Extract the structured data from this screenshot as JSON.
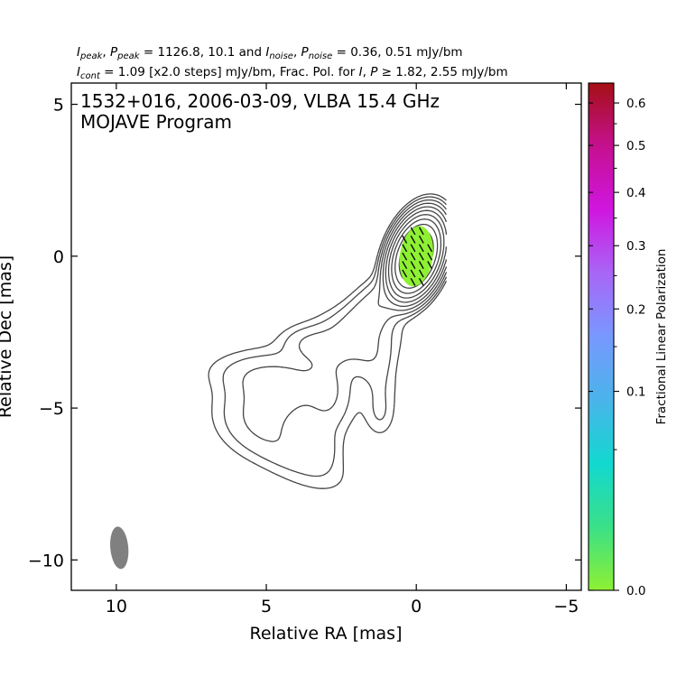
{
  "chart_data": {
    "type": "contour",
    "header": {
      "line1": {
        "ipeak_label": "I",
        "ipeak_sub": "peak",
        "ppeak_label": "P",
        "ppeak_sub": "peak",
        "peak_values": "= 1126.8, 10.1 and",
        "inoise_label": "I",
        "inoise_sub": "noise",
        "pnoise_label": "P",
        "pnoise_sub": "noise",
        "noise_values": "= 0.36, 0.51 mJy/bm"
      },
      "line2": {
        "icont_label": "I",
        "icont_sub": "cont",
        "cont_text": "= 1.09 [x2.0 steps] mJy/bm, Frac. Pol. for",
        "i_label": "I",
        "p_label": "P",
        "geq": "≥",
        "cutoff_values": "1.82, 2.55 mJy/bm"
      }
    },
    "title": "1532+016, 2006-03-09, VLBA 15.4 GHz",
    "subtitle": "MOJAVE Program",
    "xlabel": "Relative RA [mas]",
    "ylabel": "Relative Dec [mas]",
    "xlim": [
      11.5,
      -5.5
    ],
    "ylim": [
      -11,
      5.7
    ],
    "x_ticks": [
      10,
      5,
      0,
      -5
    ],
    "x_tick_labels": [
      "10",
      "5",
      "0",
      "−5"
    ],
    "y_ticks": [
      5,
      0,
      -5,
      -10
    ],
    "y_tick_labels": [
      "5",
      "0",
      "−5",
      "−10"
    ],
    "contour_color": "#444444",
    "core": {
      "x": 0.0,
      "y": 0.0
    },
    "contour_levels_mJy": [
      1.09,
      2.18,
      4.36,
      8.72,
      17.44,
      34.88,
      69.76,
      139.52,
      279.04,
      558.08
    ],
    "polarization": {
      "region_center": [
        0.0,
        0.0
      ],
      "region_extent_x": 0.55,
      "region_extent_y": 1.0,
      "fractional_pol_at_peak": 0.009,
      "color": "#8ef032",
      "evpa_deg": 60,
      "vector_color": "#000000"
    },
    "beam": {
      "x": 9.9,
      "y": -9.6,
      "major_mas": 1.4,
      "minor_mas": 0.6,
      "pa_deg": -5,
      "color": "#808080"
    },
    "colorbar": {
      "label": "Fractional Linear Polarization",
      "scale": "sqrt",
      "range": [
        0.0,
        0.65
      ],
      "ticks": [
        0.0,
        0.1,
        0.2,
        0.3,
        0.4,
        0.5,
        0.6
      ],
      "tick_labels": [
        "0.0",
        "0.1",
        "0.2",
        "0.3",
        "0.4",
        "0.5",
        "0.6"
      ],
      "minor_ticks": [
        0.05,
        0.15,
        0.25,
        0.35,
        0.45,
        0.55
      ],
      "colormap": [
        "#8ef032",
        "#3ae088",
        "#12d8d0",
        "#4ab4ea",
        "#7898ff",
        "#a866f6",
        "#d016e0",
        "#c51090",
        "#a50f14"
      ]
    }
  }
}
